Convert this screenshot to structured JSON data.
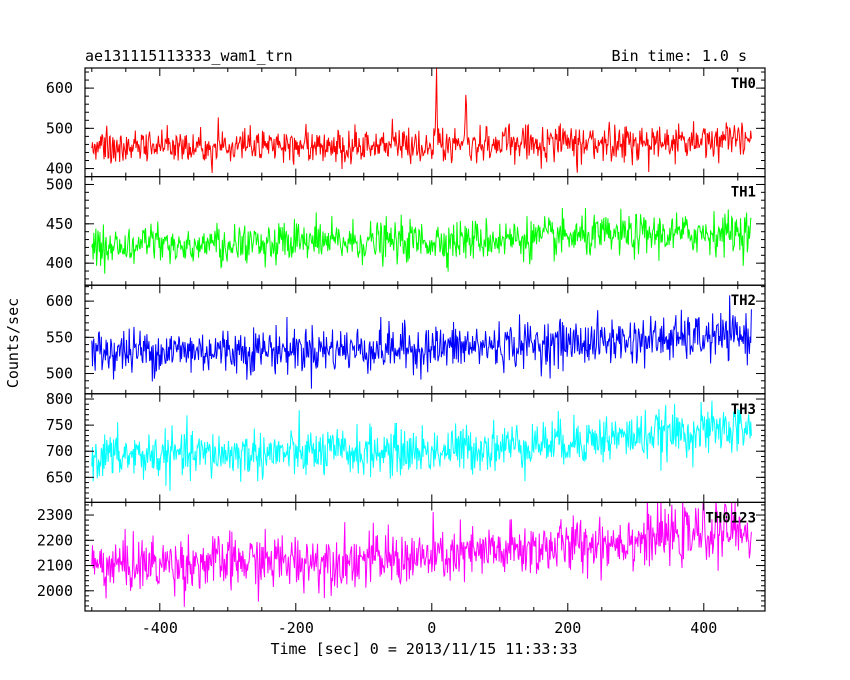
{
  "header": {
    "left_title": "ae131115113333_wam1_trn",
    "right_title": "Bin time: 1.0 s"
  },
  "chart_data": {
    "type": "line",
    "title": "ae131115113333_wam1_trn",
    "subtitle": "Bin time: 1.0 s",
    "xlabel": "Time [sec] 0 = 2013/11/15 11:33:33",
    "ylabel": "Counts/sec",
    "xlim": [
      -510,
      490
    ],
    "x_ticks": [
      -400,
      -200,
      0,
      200,
      400
    ],
    "x_range_data": [
      -500,
      470
    ],
    "bin_time_s": 1.0,
    "grid": false,
    "panels": [
      {
        "name": "TH0",
        "color": "#ff0000",
        "ylim": [
          380,
          650
        ],
        "y_ticks": [
          400,
          500,
          600
        ],
        "trend_points": [
          [
            -500,
            455
          ],
          [
            0,
            460
          ],
          [
            470,
            470
          ]
        ],
        "noise_sd": 22,
        "features": [
          {
            "x": 7,
            "peak": 650
          },
          {
            "x": 50,
            "peak": 583
          }
        ]
      },
      {
        "name": "TH1",
        "color": "#00ff00",
        "ylim": [
          372,
          510
        ],
        "y_ticks": [
          400,
          450,
          500
        ],
        "trend_points": [
          [
            -500,
            422
          ],
          [
            0,
            428
          ],
          [
            470,
            440
          ]
        ],
        "noise_sd": 13,
        "features": []
      },
      {
        "name": "TH2",
        "color": "#0000ff",
        "ylim": [
          472,
          622
        ],
        "y_ticks": [
          500,
          550,
          600
        ],
        "trend_points": [
          [
            -500,
            530
          ],
          [
            0,
            535
          ],
          [
            470,
            552
          ]
        ],
        "noise_sd": 16,
        "features": []
      },
      {
        "name": "TH3",
        "color": "#00ffff",
        "ylim": [
          602,
          810
        ],
        "y_ticks": [
          650,
          700,
          750,
          800
        ],
        "trend_points": [
          [
            -500,
            690
          ],
          [
            0,
            700
          ],
          [
            470,
            745
          ]
        ],
        "noise_sd": 23,
        "features": []
      },
      {
        "name": "TH0123",
        "color": "#ff00ff",
        "ylim": [
          1920,
          2350
        ],
        "y_ticks": [
          2000,
          2100,
          2200,
          2300
        ],
        "trend_points": [
          [
            -500,
            2100
          ],
          [
            0,
            2130
          ],
          [
            470,
            2245
          ]
        ],
        "noise_sd": 55,
        "features": []
      }
    ]
  }
}
